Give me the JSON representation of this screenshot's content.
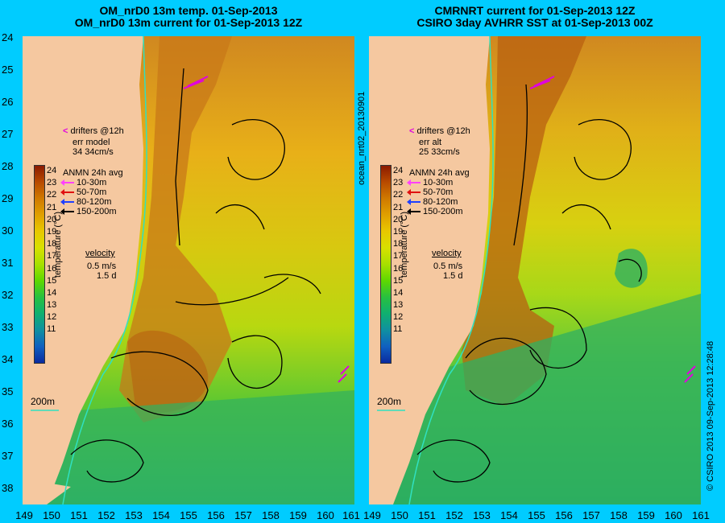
{
  "titles": {
    "left": [
      "OM_nrD0 13m temp. 01-Sep-2013",
      "OM_nrD0 13m current for 01-Sep-2013 12Z"
    ],
    "right": [
      "CMRNRT current for 01-Sep-2013 12Z",
      "CSIRO 3day AVHRR SST at 01-Sep-2013 00Z"
    ]
  },
  "lat_ticks": [
    "24",
    "25",
    "26",
    "27",
    "28",
    "29",
    "30",
    "31",
    "32",
    "33",
    "34",
    "35",
    "36",
    "37",
    "38"
  ],
  "lon_ticks": [
    "149",
    "150",
    "151",
    "152",
    "153",
    "154",
    "155",
    "156",
    "157",
    "158",
    "159",
    "160",
    "161"
  ],
  "colorbar": {
    "ticks": [
      "24",
      "23",
      "22",
      "21",
      "20",
      "19",
      "18",
      "17",
      "16",
      "15",
      "14",
      "13",
      "12",
      "11"
    ],
    "caption": "temperature (°C)"
  },
  "left_legend": {
    "drifters": "drifters @12h",
    "err_label": "err model",
    "err_values": "34 34cm/s",
    "anmn": "ANMN 24h avg",
    "depths": [
      {
        "label": "10-30m",
        "color": "#ff40ff"
      },
      {
        "label": "50-70m",
        "color": "#e01010"
      },
      {
        "label": "80-120m",
        "color": "#2040ff"
      },
      {
        "label": "150-200m",
        "color": "#000000"
      }
    ],
    "velocity": "velocity",
    "speed": "0.5 m/s",
    "duration": "1.5 d",
    "contour": "200m"
  },
  "right_legend": {
    "drifters": "drifters @12h",
    "err_label": "err alt",
    "err_values": "25 33cm/s",
    "anmn": "ANMN 24h avg",
    "depths": [
      {
        "label": "10-30m",
        "color": "#ff40ff"
      },
      {
        "label": "50-70m",
        "color": "#e01010"
      },
      {
        "label": "80-120m",
        "color": "#2040ff"
      },
      {
        "label": "150-200m",
        "color": "#000000"
      }
    ],
    "velocity": "velocity",
    "speed": "0.5 m/s",
    "duration": "1.5 d",
    "contour": "200m"
  },
  "side_texts": {
    "left": "ocean_nrt02_20130901",
    "right": "© CSIRO 2013   09-Sep-2013 12:28:48"
  },
  "colors": {
    "background": "#00ccff",
    "land": "#f5c8a0",
    "warm": "#c06010",
    "cool": "#20b060",
    "coast": "#30e0c0"
  }
}
